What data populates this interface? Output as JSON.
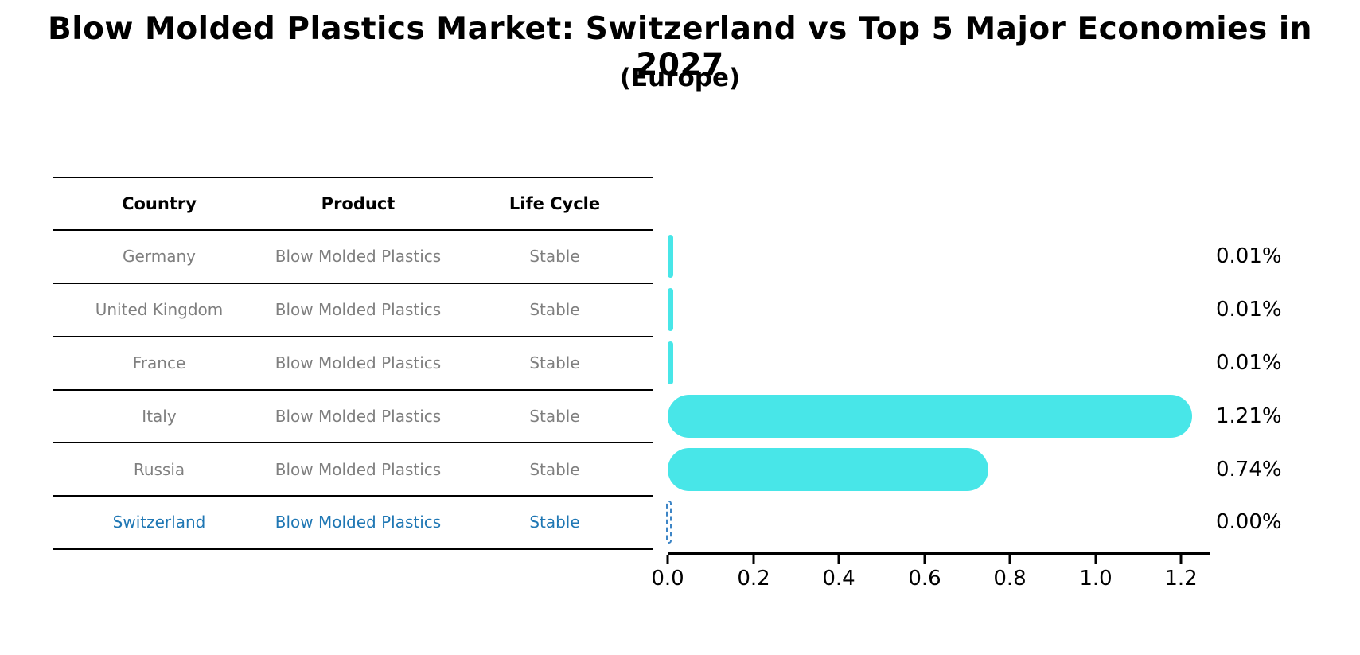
{
  "title": "Blow Molded Plastics Market: Switzerland vs Top 5 Major Economies in 2027",
  "subtitle": "(Europe)",
  "colors": {
    "bar_fill": "#48e6e8",
    "highlight_text": "#1f77b4",
    "highlight_bar_edge": "#3d85c6",
    "table_text": "#7f7f7f",
    "line": "#000000",
    "background": "#ffffff"
  },
  "table": {
    "headers": [
      "Country",
      "Product",
      "Life Cycle"
    ],
    "rows": [
      {
        "country": "Germany",
        "product": "Blow Molded Plastics",
        "life_cycle": "Stable",
        "value_label": "0.01%",
        "highlight": false
      },
      {
        "country": "United Kingdom",
        "product": "Blow Molded Plastics",
        "life_cycle": "Stable",
        "value_label": "0.01%",
        "highlight": false
      },
      {
        "country": "France",
        "product": "Blow Molded Plastics",
        "life_cycle": "Stable",
        "value_label": "0.01%",
        "highlight": false
      },
      {
        "country": "Italy",
        "product": "Blow Molded Plastics",
        "life_cycle": "Stable",
        "value_label": "1.21%",
        "highlight": false
      },
      {
        "country": "Russia",
        "product": "Blow Molded Plastics",
        "life_cycle": "Stable",
        "value_label": "0.74%",
        "highlight": false
      },
      {
        "country": "Switzerland",
        "product": "Blow Molded Plastics",
        "life_cycle": "Stable",
        "value_label": "0.00%",
        "highlight": true
      }
    ]
  },
  "chart_data": {
    "type": "bar",
    "orientation": "horizontal",
    "title": "Blow Molded Plastics Market: Switzerland vs Top 5 Major Economies in 2027",
    "subtitle": "(Europe)",
    "categories": [
      "Germany",
      "United Kingdom",
      "France",
      "Italy",
      "Russia",
      "Switzerland"
    ],
    "values": [
      0.01,
      0.01,
      0.01,
      1.21,
      0.74,
      0.0
    ],
    "value_labels": [
      "0.01%",
      "0.01%",
      "0.01%",
      "1.21%",
      "0.74%",
      "0.00%"
    ],
    "xlabel": "",
    "ylabel": "",
    "xlim": [
      0,
      1.28
    ],
    "xticks": [
      0.0,
      0.2,
      0.4,
      0.6,
      0.8,
      1.0,
      1.2
    ],
    "grid": false,
    "legend": false,
    "bar_color": "#48e6e8",
    "highlight_index": 5,
    "highlight_edge_color": "#3d85c6"
  },
  "axis": {
    "ticks": [
      "0.0",
      "0.2",
      "0.4",
      "0.6",
      "0.8",
      "1.0",
      "1.2"
    ]
  }
}
